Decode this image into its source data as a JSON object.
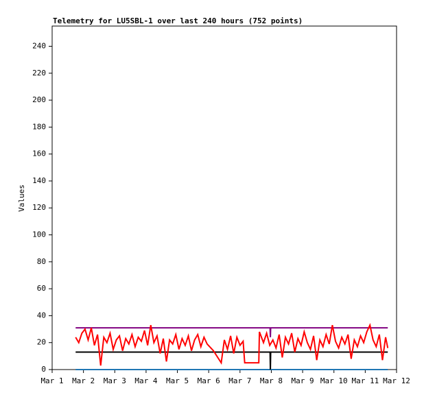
{
  "chart_data": {
    "type": "line",
    "title": "Telemetry for LU5SBL-1 over last 240 hours (752 points)",
    "y_label": "Values",
    "xlim": [
      1,
      12
    ],
    "xticks": [
      {
        "value": 1,
        "label": "Mar 1"
      },
      {
        "value": 2,
        "label": "Mar 2"
      },
      {
        "value": 3,
        "label": "Mar 3"
      },
      {
        "value": 4,
        "label": "Mar 4"
      },
      {
        "value": 5,
        "label": "Mar 5"
      },
      {
        "value": 6,
        "label": "Mar 6"
      },
      {
        "value": 7,
        "label": "Mar 7"
      },
      {
        "value": 8,
        "label": "Mar 8"
      },
      {
        "value": 9,
        "label": "Mar 9"
      },
      {
        "value": 10,
        "label": "Mar 10"
      },
      {
        "value": 11,
        "label": "Mar 11"
      },
      {
        "value": 12,
        "label": "Mar 12"
      }
    ],
    "ylim": [
      0,
      255
    ],
    "yticks": [
      0,
      20,
      40,
      60,
      80,
      100,
      120,
      140,
      160,
      180,
      200,
      220,
      240
    ],
    "grid": false,
    "series": [
      {
        "color": "#1f77b4",
        "x": [
          1.75,
          11.72
        ],
        "values": [
          0,
          0
        ]
      },
      {
        "color": "#000000",
        "x": [
          1.75,
          7.96,
          7.97,
          7.98,
          11.72
        ],
        "values": [
          13,
          13,
          0,
          13,
          13
        ]
      },
      {
        "color": "#800080",
        "x": [
          1.75,
          7.96,
          7.97,
          7.98,
          11.72
        ],
        "values": [
          31,
          31,
          24,
          31,
          31
        ]
      },
      {
        "color": "#ff0000",
        "x": [
          1.75,
          1.85,
          1.95,
          2.05,
          2.15,
          2.25,
          2.35,
          2.45,
          2.55,
          2.65,
          2.75,
          2.85,
          2.95,
          3.05,
          3.15,
          3.25,
          3.35,
          3.45,
          3.55,
          3.65,
          3.75,
          3.85,
          3.95,
          4.05,
          4.15,
          4.25,
          4.35,
          4.45,
          4.55,
          4.65,
          4.75,
          4.85,
          4.95,
          5.05,
          5.15,
          5.25,
          5.35,
          5.45,
          5.55,
          5.65,
          5.75,
          5.85,
          5.95,
          6.15,
          6.4,
          6.5,
          6.6,
          6.7,
          6.8,
          6.9,
          7.0,
          7.1,
          7.15,
          7.6,
          7.62,
          7.75,
          7.85,
          7.95,
          8.05,
          8.15,
          8.25,
          8.35,
          8.45,
          8.55,
          8.65,
          8.75,
          8.85,
          8.95,
          9.05,
          9.15,
          9.25,
          9.35,
          9.45,
          9.55,
          9.65,
          9.75,
          9.85,
          9.95,
          10.05,
          10.15,
          10.25,
          10.35,
          10.45,
          10.55,
          10.65,
          10.75,
          10.85,
          10.95,
          11.05,
          11.15,
          11.25,
          11.35,
          11.45,
          11.55,
          11.65,
          11.72
        ],
        "values": [
          24,
          20,
          27,
          30,
          22,
          31,
          18,
          26,
          3,
          24,
          20,
          27,
          15,
          22,
          25,
          14,
          23,
          19,
          26,
          17,
          24,
          21,
          29,
          18,
          33,
          20,
          25,
          12,
          23,
          6,
          22,
          19,
          26,
          15,
          23,
          18,
          25,
          14,
          22,
          26,
          17,
          24,
          19,
          14,
          5,
          22,
          15,
          25,
          12,
          24,
          18,
          21,
          5,
          5,
          28,
          20,
          27,
          18,
          22,
          16,
          26,
          9,
          24,
          19,
          27,
          13,
          23,
          18,
          28,
          20,
          15,
          25,
          7,
          22,
          17,
          26,
          19,
          33,
          21,
          16,
          24,
          19,
          26,
          8,
          22,
          17,
          25,
          20,
          28,
          33,
          22,
          17,
          26,
          7,
          24,
          16
        ]
      }
    ]
  }
}
